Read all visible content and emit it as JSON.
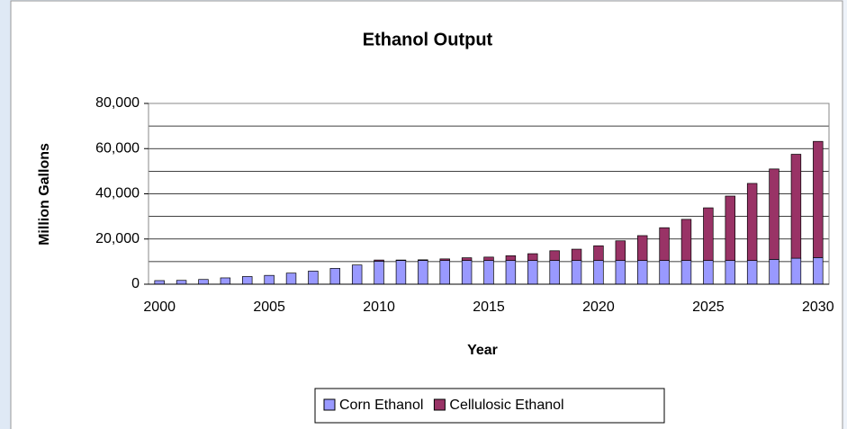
{
  "chart_data": {
    "type": "stacked_bar",
    "title": "Ethanol Output",
    "x_label": "Year",
    "y_label": "Million Gallons",
    "categories": [
      "2000",
      null,
      null,
      null,
      null,
      "2005",
      null,
      null,
      null,
      null,
      "2010",
      null,
      null,
      null,
      null,
      "2015",
      null,
      null,
      null,
      null,
      "2020",
      null,
      null,
      null,
      null,
      "2025",
      null,
      null,
      null,
      null,
      "2030"
    ],
    "series": [
      {
        "name": "Corn Ethanol",
        "color": "#9999ff",
        "values": [
          1600,
          1700,
          2100,
          2800,
          3400,
          3900,
          4900,
          5800,
          7000,
          8500,
          10200,
          10500,
          10500,
          10500,
          10500,
          10500,
          10500,
          10500,
          10500,
          10500,
          10500,
          10500,
          10500,
          10500,
          10500,
          10500,
          10500,
          10500,
          11000,
          11500,
          11800
        ]
      },
      {
        "name": "Cellulosic Ethanol",
        "color": "#993366",
        "values": [
          0,
          0,
          0,
          0,
          0,
          0,
          0,
          0,
          0,
          0,
          500,
          200,
          300,
          700,
          1200,
          1500,
          2100,
          3000,
          4300,
          5000,
          6500,
          8700,
          11000,
          14500,
          18200,
          23300,
          28500,
          34100,
          40000,
          46000,
          51400
        ]
      }
    ],
    "ylim": [
      0,
      80000
    ],
    "yticks": [
      0,
      {
        "value": 20000,
        "label": "20,000"
      },
      {
        "value": 40000,
        "label": "40,000"
      },
      {
        "value": 60000,
        "label": "60,000"
      },
      {
        "value": 80000,
        "label": "80,000"
      }
    ],
    "ygrid": [
      0,
      10000,
      20000,
      30000,
      40000,
      50000,
      60000,
      70000,
      80000
    ],
    "grid": true,
    "legend": "bottom"
  }
}
